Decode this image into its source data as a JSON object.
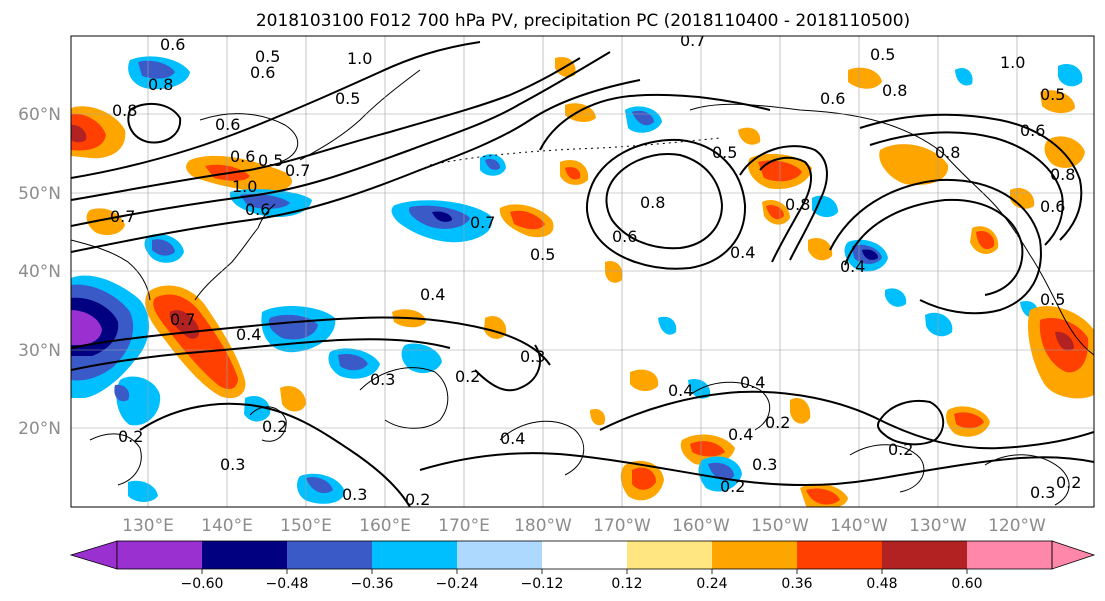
{
  "title": "2018103100 F012 700 hPa PV, precipitation PC (2018110400 - 2018110500)",
  "map": {
    "lat_labels": [
      "60°N",
      "50°N",
      "40°N",
      "30°N",
      "20°N"
    ],
    "lon_labels": [
      "130°E",
      "140°E",
      "150°E",
      "160°E",
      "170°E",
      "180°W",
      "170°W",
      "160°W",
      "150°W",
      "140°W",
      "130°W",
      "120°W"
    ],
    "contour_labels": [
      "0.7",
      "0.6",
      "0.5",
      "1.0",
      "1.0",
      "0.8",
      "0.5",
      "0.6",
      "0.5",
      "0.8",
      "0.6",
      "0.6",
      "0.8",
      "0.6",
      "0.5",
      "0.7",
      "0.6",
      "0.8",
      "0.5",
      "0.6",
      "0.5",
      "0.8",
      "0.7",
      "0.6",
      "0.4",
      "0.8",
      "0.4",
      "0.7",
      "0.6",
      "1.0",
      "0.8",
      "0.5",
      "0.4",
      "0.7",
      "0.4",
      "0.3",
      "0.2",
      "0.3",
      "0.4",
      "0.2",
      "0.2",
      "0.4",
      "0.2",
      "0.4",
      "0.3",
      "0.2",
      "0.3",
      "0.2",
      "0.3",
      "0.2",
      "0.2",
      "0.4",
      "0.3",
      "0.5"
    ]
  },
  "colorbar": {
    "colors": [
      "#9b30d0",
      "#000080",
      "#3a5ac8",
      "#00bfff",
      "#add8ff",
      "#ffffff",
      "#ffe680",
      "#ffa500",
      "#ff4000",
      "#b22222",
      "#ff88aa"
    ],
    "tick_labels": [
      "−0.60",
      "−0.48",
      "−0.36",
      "−0.24",
      "−0.12",
      "0.12",
      "0.24",
      "0.36",
      "0.48",
      "0.60"
    ]
  }
}
